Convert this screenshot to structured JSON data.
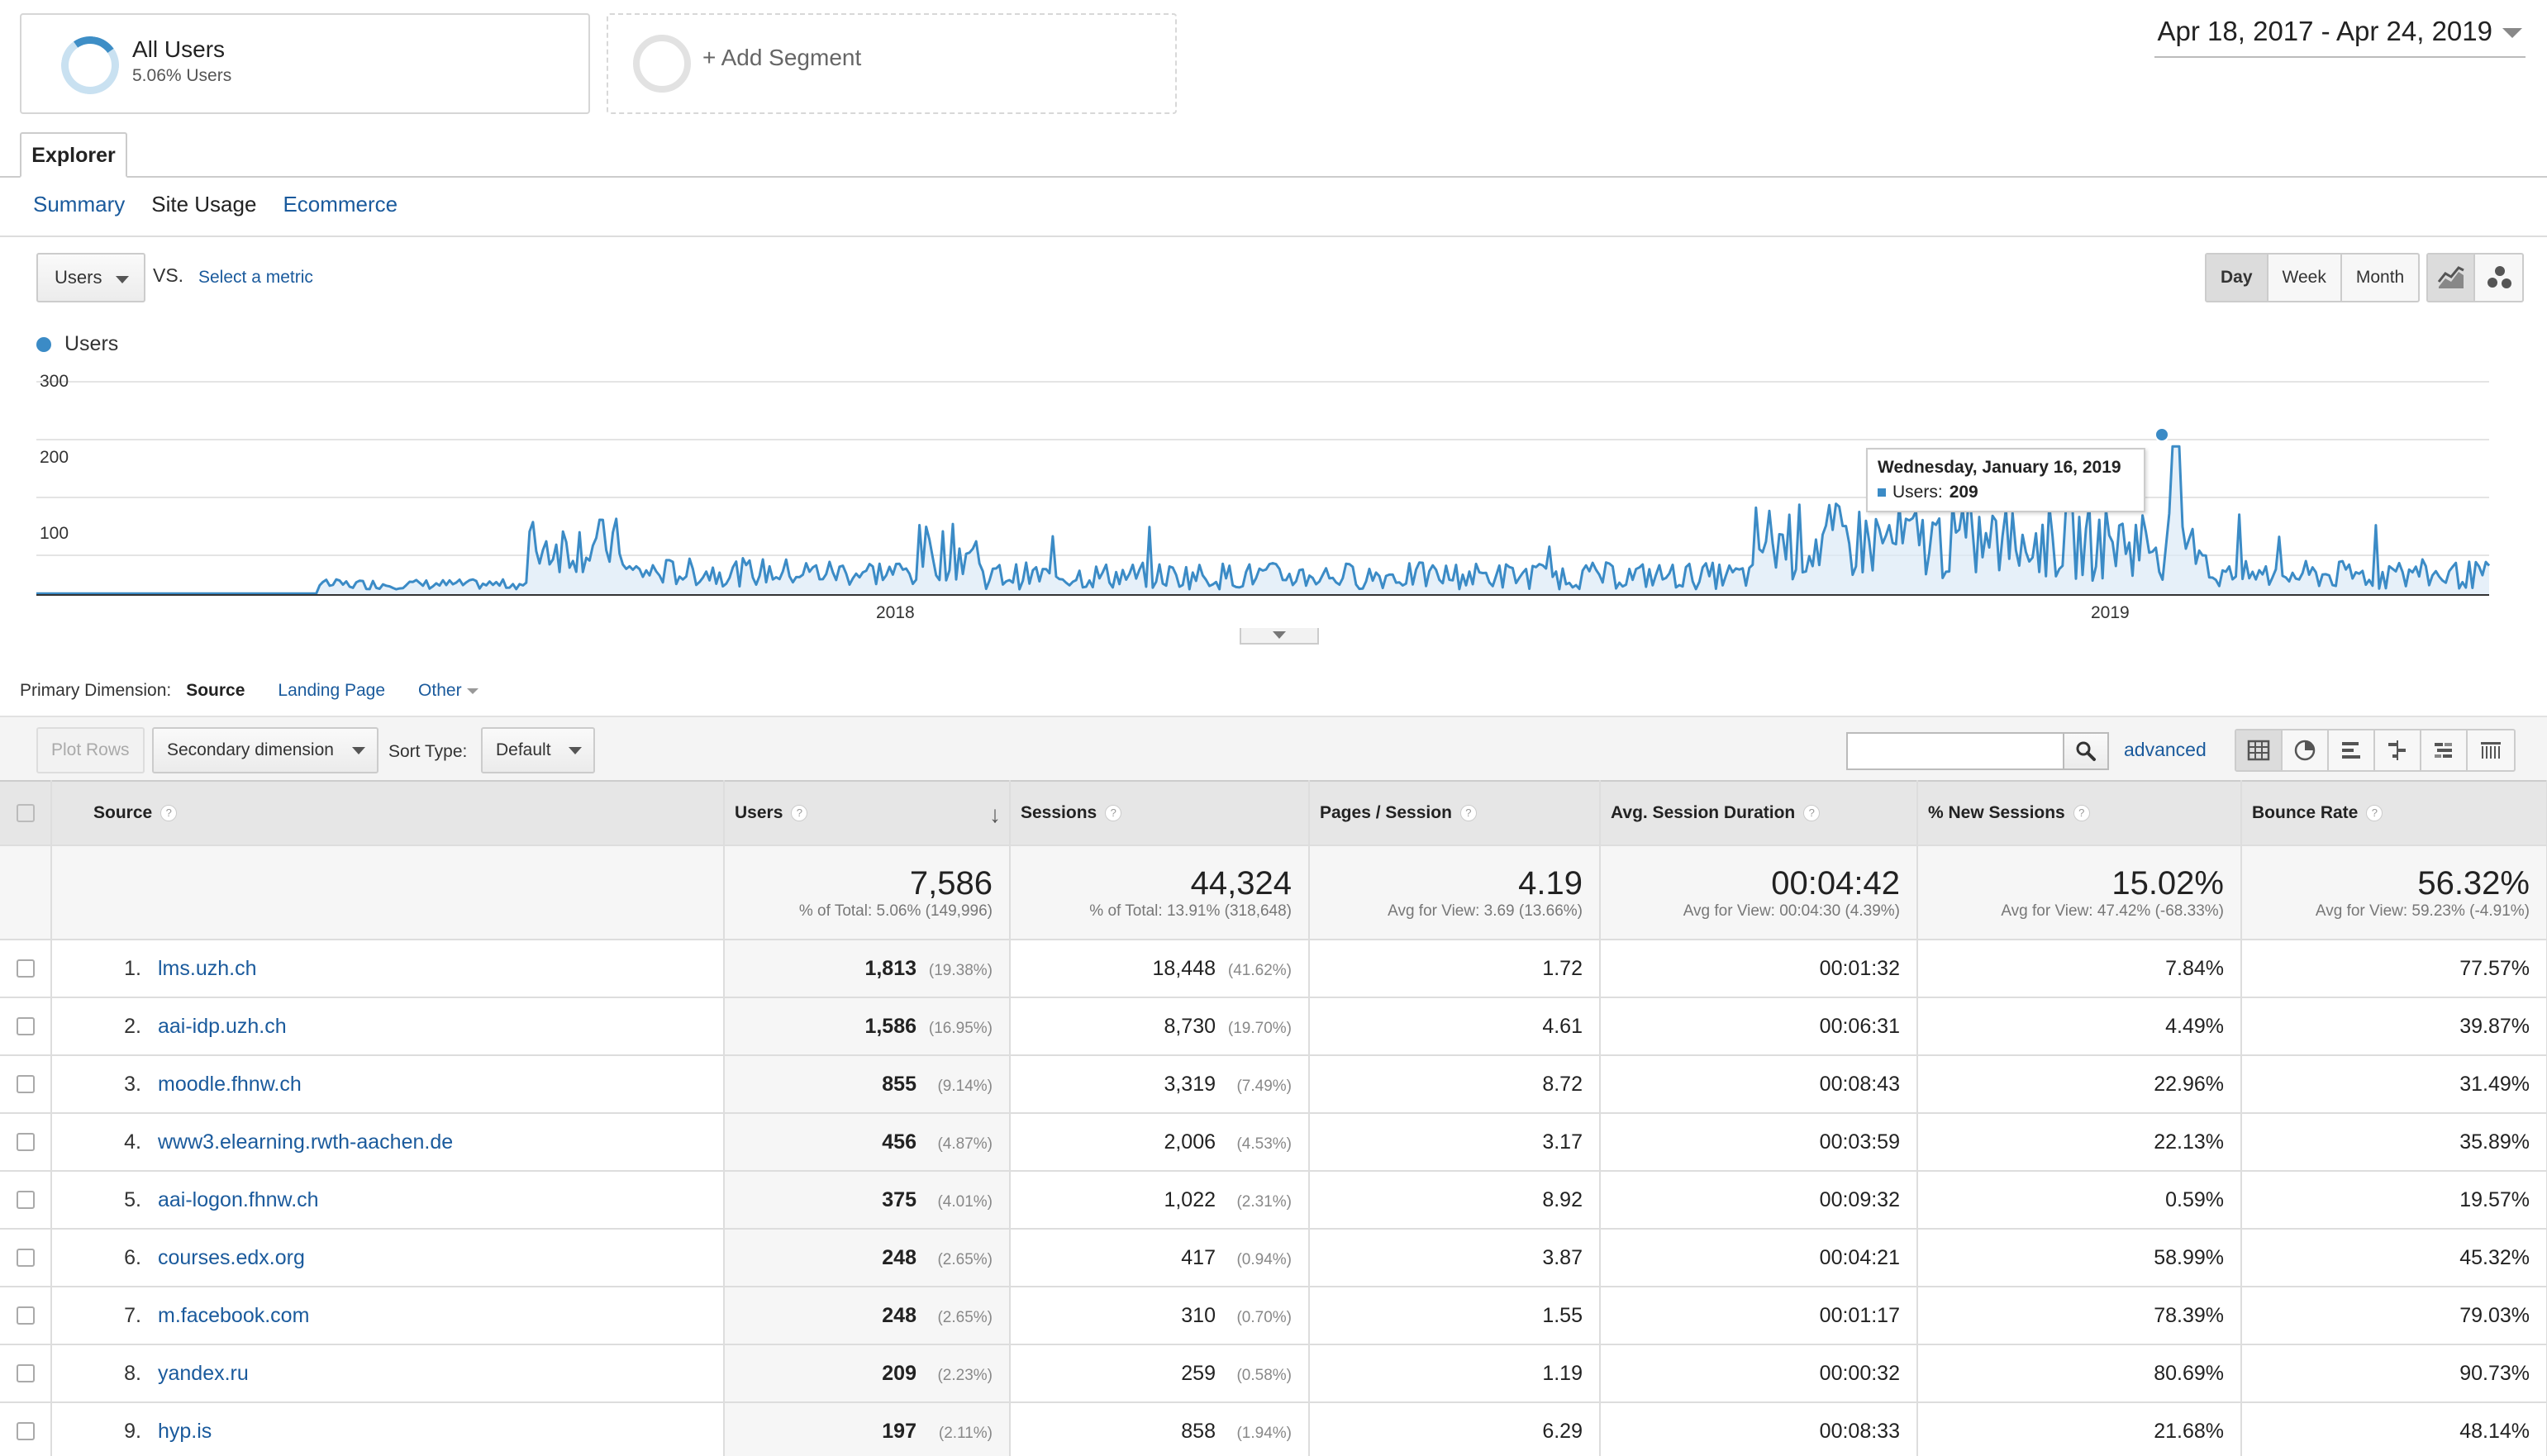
{
  "segments": {
    "all_users": {
      "title": "All Users",
      "subtitle": "5.06% Users"
    },
    "add_segment": {
      "label": "+ Add Segment"
    }
  },
  "date_range": "Apr 18, 2017 - Apr 24, 2019",
  "tabs": {
    "explorer": "Explorer"
  },
  "subtabs": [
    "Summary",
    "Site Usage",
    "Ecommerce"
  ],
  "chart_controls": {
    "metric": "Users",
    "vs": "VS.",
    "select_metric": "Select a metric",
    "periods": [
      "Day",
      "Week",
      "Month"
    ],
    "active_period": "Day"
  },
  "chart_data": {
    "type": "line",
    "series": [
      {
        "name": "Users",
        "color": "#3b8bc6"
      }
    ],
    "ylim": [
      0,
      300
    ],
    "yticks": [
      "300",
      "200",
      "100"
    ],
    "xticks": [
      "2018",
      "2019"
    ],
    "tooltip": {
      "title": "Wednesday, January 16, 2019",
      "label": "Users:",
      "value": "209"
    },
    "x_range": [
      "Apr 18, 2017",
      "Apr 24, 2019"
    ],
    "grid": true
  },
  "primary_dimension": {
    "label": "Primary Dimension:",
    "options": [
      "Source",
      "Landing Page",
      "Other"
    ],
    "active": "Source"
  },
  "toolbar": {
    "plot_rows": "Plot Rows",
    "secondary_dimension": "Secondary dimension",
    "sort_type_label": "Sort Type:",
    "sort_type": "Default",
    "advanced": "advanced"
  },
  "table": {
    "headers": [
      "Source",
      "Users",
      "Sessions",
      "Pages / Session",
      "Avg. Session Duration",
      "% New Sessions",
      "Bounce Rate"
    ],
    "totals": [
      {
        "value": "7,586",
        "note": "% of Total: 5.06% (149,996)"
      },
      {
        "value": "44,324",
        "note": "% of Total: 13.91% (318,648)"
      },
      {
        "value": "4.19",
        "note": "Avg for View: 3.69 (13.66%)"
      },
      {
        "value": "00:04:42",
        "note": "Avg for View: 00:04:30 (4.39%)"
      },
      {
        "value": "15.02%",
        "note": "Avg for View: 47.42% (-68.33%)"
      },
      {
        "value": "56.32%",
        "note": "Avg for View: 59.23% (-4.91%)"
      }
    ],
    "rows": [
      {
        "rank": "1.",
        "source": "lms.uzh.ch",
        "users": "1,813",
        "users_pct": "(19.38%)",
        "sessions": "18,448",
        "sessions_pct": "(41.62%)",
        "pages": "1.72",
        "duration": "00:01:32",
        "new_sessions": "7.84%",
        "bounce": "77.57%"
      },
      {
        "rank": "2.",
        "source": "aai-idp.uzh.ch",
        "users": "1,586",
        "users_pct": "(16.95%)",
        "sessions": "8,730",
        "sessions_pct": "(19.70%)",
        "pages": "4.61",
        "duration": "00:06:31",
        "new_sessions": "4.49%",
        "bounce": "39.87%"
      },
      {
        "rank": "3.",
        "source": "moodle.fhnw.ch",
        "users": "855",
        "users_pct": "(9.14%)",
        "sessions": "3,319",
        "sessions_pct": "(7.49%)",
        "pages": "8.72",
        "duration": "00:08:43",
        "new_sessions": "22.96%",
        "bounce": "31.49%"
      },
      {
        "rank": "4.",
        "source": "www3.elearning.rwth-aachen.de",
        "users": "456",
        "users_pct": "(4.87%)",
        "sessions": "2,006",
        "sessions_pct": "(4.53%)",
        "pages": "3.17",
        "duration": "00:03:59",
        "new_sessions": "22.13%",
        "bounce": "35.89%"
      },
      {
        "rank": "5.",
        "source": "aai-logon.fhnw.ch",
        "users": "375",
        "users_pct": "(4.01%)",
        "sessions": "1,022",
        "sessions_pct": "(2.31%)",
        "pages": "8.92",
        "duration": "00:09:32",
        "new_sessions": "0.59%",
        "bounce": "19.57%"
      },
      {
        "rank": "6.",
        "source": "courses.edx.org",
        "users": "248",
        "users_pct": "(2.65%)",
        "sessions": "417",
        "sessions_pct": "(0.94%)",
        "pages": "3.87",
        "duration": "00:04:21",
        "new_sessions": "58.99%",
        "bounce": "45.32%"
      },
      {
        "rank": "7.",
        "source": "m.facebook.com",
        "users": "248",
        "users_pct": "(2.65%)",
        "sessions": "310",
        "sessions_pct": "(0.70%)",
        "pages": "1.55",
        "duration": "00:01:17",
        "new_sessions": "78.39%",
        "bounce": "79.03%"
      },
      {
        "rank": "8.",
        "source": "yandex.ru",
        "users": "209",
        "users_pct": "(2.23%)",
        "sessions": "259",
        "sessions_pct": "(0.58%)",
        "pages": "1.19",
        "duration": "00:00:32",
        "new_sessions": "80.69%",
        "bounce": "90.73%"
      },
      {
        "rank": "9.",
        "source": "hyp.is",
        "users": "197",
        "users_pct": "(2.11%)",
        "sessions": "858",
        "sessions_pct": "(1.94%)",
        "pages": "6.29",
        "duration": "00:08:33",
        "new_sessions": "21.68%",
        "bounce": "48.14%"
      }
    ]
  }
}
